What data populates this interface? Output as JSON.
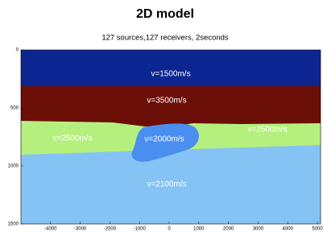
{
  "chart_data": {
    "type": "image",
    "title": "2D model",
    "subtitle": "127 sources,127 receivers, 2seconds",
    "xlim": [
      -5000,
      5000
    ],
    "ylim": [
      0,
      1500
    ],
    "xticks": [
      -4000,
      -3000,
      -2000,
      -1000,
      0,
      1000,
      2000,
      3000,
      4000,
      5000
    ],
    "yticks": [
      0,
      500,
      1000,
      1500
    ],
    "annotations": [
      "v=1500m/s",
      "v=3500m/s",
      "v=2500m/s",
      "v=2000m/s",
      "v=2500m/s",
      "v=2100m/s"
    ]
  }
}
